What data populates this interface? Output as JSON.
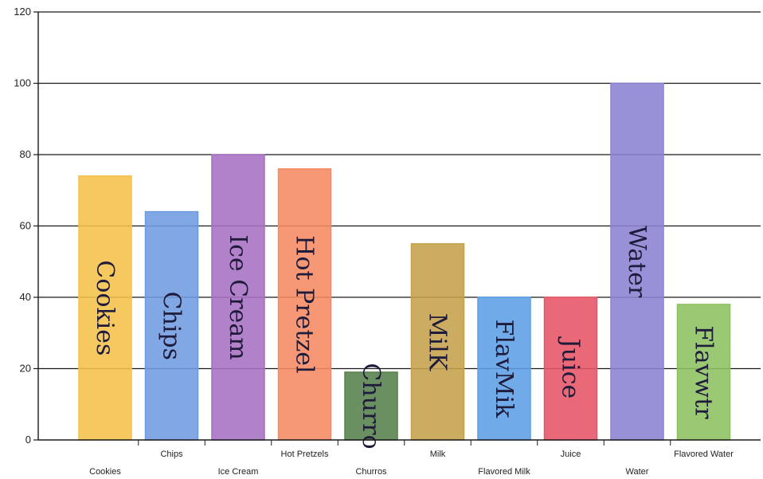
{
  "chart_data": {
    "type": "bar",
    "categories": [
      "Cookies",
      "Chips",
      "Ice Cream",
      "Hot Pretzels",
      "Churros",
      "Milk",
      "Flavored Milk",
      "Juice",
      "Water",
      "Flavored Water"
    ],
    "values": [
      74,
      64,
      80,
      76,
      19,
      55,
      40,
      40,
      100,
      38
    ],
    "bar_annotations": [
      "Cookies",
      "Chips",
      "Ice Cream",
      "Hot Pretzel",
      "Churro",
      "MilK",
      "FlavMik",
      "Juice",
      "Water",
      "Flavwtr"
    ],
    "colors": [
      "#f5c04a",
      "#6f9be0",
      "#a66fc2",
      "#f58a62",
      "#55804a",
      "#c4a04a",
      "#5d9ee6",
      "#e65466",
      "#8a82d2",
      "#8cc060"
    ],
    "ylim": [
      0,
      120
    ],
    "yticks": [
      0,
      20,
      40,
      60,
      80,
      100,
      120
    ],
    "grid": true,
    "title": "",
    "xlabel": "",
    "ylabel": ""
  }
}
